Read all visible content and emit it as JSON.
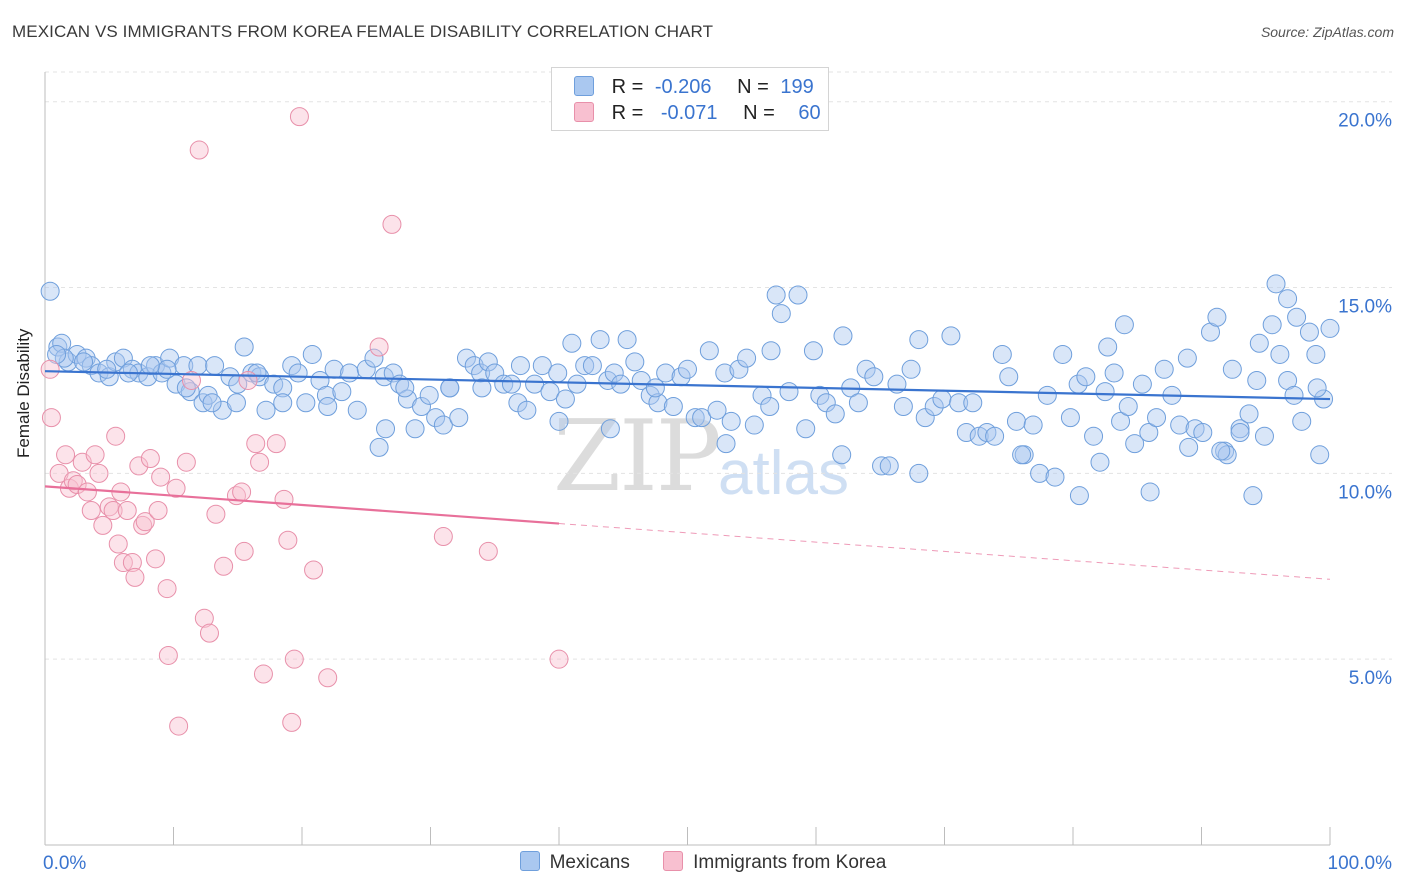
{
  "title": "MEXICAN VS IMMIGRANTS FROM KOREA FEMALE DISABILITY CORRELATION CHART",
  "source": "Source: ZipAtlas.com",
  "watermark": {
    "zip": "ZIP",
    "atlas": "atlas"
  },
  "legend": {
    "r_label": "R =",
    "n_label": "N =",
    "rows": [
      {
        "r": "-0.206",
        "n": "199",
        "color": "#aac8f0",
        "border": "#6f9fdc"
      },
      {
        "r": "-0.071",
        "n": "60",
        "color": "#f8c0d0",
        "border": "#e890aa"
      }
    ]
  },
  "bottom_legend": [
    {
      "name": "Mexicans",
      "color": "#aac8f0",
      "border": "#6f9fdc"
    },
    {
      "name": "Immigrants from Korea",
      "color": "#f8c0d0",
      "border": "#e890aa"
    }
  ],
  "colors": {
    "blue": "#3a74cf",
    "pink": "#e8709a",
    "grid": "#e3e3e3",
    "tick_label": "#3a74cf"
  },
  "chart_data": {
    "type": "scatter",
    "title": "MEXICAN VS IMMIGRANTS FROM KOREA FEMALE DISABILITY CORRELATION CHART",
    "xlabel": "",
    "ylabel": "Female Disability",
    "xlim": [
      0,
      100
    ],
    "ylim": [
      0,
      20.8
    ],
    "x_tick_labels": [
      "0.0%",
      "100.0%"
    ],
    "y_ticks": [
      5,
      10,
      15,
      20
    ],
    "y_tick_labels": [
      "5.0%",
      "10.0%",
      "15.0%",
      "20.0%"
    ],
    "grid": true,
    "legend_position": "top-center",
    "series": [
      {
        "name": "Mexicans",
        "color": "#aac8f0",
        "trend": {
          "x": [
            0,
            100
          ],
          "y": [
            12.75,
            12.0
          ],
          "dashed_from": null
        },
        "points": [
          [
            0.4,
            14.9
          ],
          [
            1.0,
            13.4
          ],
          [
            1.3,
            13.5
          ],
          [
            1.8,
            13.0
          ],
          [
            2.5,
            13.2
          ],
          [
            3.2,
            13.1
          ],
          [
            3.6,
            12.9
          ],
          [
            4.2,
            12.7
          ],
          [
            5.0,
            12.6
          ],
          [
            5.5,
            13.0
          ],
          [
            6.1,
            13.1
          ],
          [
            6.8,
            12.8
          ],
          [
            7.3,
            12.7
          ],
          [
            8.0,
            12.6
          ],
          [
            8.6,
            12.9
          ],
          [
            9.1,
            12.7
          ],
          [
            9.7,
            13.1
          ],
          [
            10.2,
            12.4
          ],
          [
            10.8,
            12.9
          ],
          [
            11.3,
            12.2
          ],
          [
            11.9,
            12.9
          ],
          [
            12.3,
            11.9
          ],
          [
            12.7,
            12.1
          ],
          [
            13.2,
            12.9
          ],
          [
            13.8,
            11.7
          ],
          [
            14.4,
            12.6
          ],
          [
            14.9,
            11.9
          ],
          [
            15.5,
            13.4
          ],
          [
            16.1,
            12.7
          ],
          [
            16.7,
            12.6
          ],
          [
            17.2,
            11.7
          ],
          [
            17.8,
            12.4
          ],
          [
            18.5,
            12.3
          ],
          [
            19.2,
            12.9
          ],
          [
            19.7,
            12.7
          ],
          [
            20.3,
            11.9
          ],
          [
            20.8,
            13.2
          ],
          [
            21.4,
            12.5
          ],
          [
            21.9,
            12.1
          ],
          [
            22.5,
            12.8
          ],
          [
            23.1,
            12.2
          ],
          [
            23.7,
            12.7
          ],
          [
            24.3,
            11.7
          ],
          [
            25.0,
            12.8
          ],
          [
            25.6,
            13.1
          ],
          [
            26.0,
            10.7
          ],
          [
            26.4,
            12.6
          ],
          [
            27.1,
            12.7
          ],
          [
            27.6,
            12.4
          ],
          [
            28.2,
            12.0
          ],
          [
            28.8,
            11.2
          ],
          [
            29.3,
            11.8
          ],
          [
            29.9,
            12.1
          ],
          [
            30.4,
            11.5
          ],
          [
            31.0,
            11.3
          ],
          [
            31.5,
            12.3
          ],
          [
            32.2,
            11.5
          ],
          [
            32.8,
            13.1
          ],
          [
            33.4,
            12.9
          ],
          [
            33.9,
            12.7
          ],
          [
            34.5,
            13.0
          ],
          [
            35.0,
            12.7
          ],
          [
            35.7,
            12.4
          ],
          [
            36.3,
            12.4
          ],
          [
            36.8,
            11.9
          ],
          [
            37.5,
            11.7
          ],
          [
            38.1,
            12.4
          ],
          [
            38.7,
            12.9
          ],
          [
            39.3,
            12.2
          ],
          [
            39.9,
            12.7
          ],
          [
            40.5,
            12.0
          ],
          [
            41.0,
            13.5
          ],
          [
            41.4,
            12.4
          ],
          [
            42.0,
            12.9
          ],
          [
            42.6,
            12.9
          ],
          [
            43.2,
            13.6
          ],
          [
            43.8,
            12.5
          ],
          [
            44.3,
            12.7
          ],
          [
            44.8,
            12.4
          ],
          [
            45.3,
            13.6
          ],
          [
            45.9,
            13.0
          ],
          [
            46.4,
            12.5
          ],
          [
            47.1,
            12.1
          ],
          [
            47.7,
            11.9
          ],
          [
            48.3,
            12.7
          ],
          [
            48.9,
            11.8
          ],
          [
            49.5,
            12.6
          ],
          [
            50.0,
            12.8
          ],
          [
            50.6,
            11.5
          ],
          [
            51.1,
            11.5
          ],
          [
            51.7,
            13.3
          ],
          [
            52.3,
            11.7
          ],
          [
            52.9,
            12.7
          ],
          [
            53.4,
            11.4
          ],
          [
            54.0,
            12.8
          ],
          [
            54.6,
            13.1
          ],
          [
            55.2,
            11.3
          ],
          [
            55.8,
            12.1
          ],
          [
            56.4,
            11.8
          ],
          [
            56.9,
            14.8
          ],
          [
            57.3,
            14.3
          ],
          [
            57.9,
            12.2
          ],
          [
            58.6,
            14.8
          ],
          [
            59.2,
            11.2
          ],
          [
            59.8,
            13.3
          ],
          [
            60.3,
            12.1
          ],
          [
            60.8,
            11.9
          ],
          [
            61.5,
            11.6
          ],
          [
            62.1,
            13.7
          ],
          [
            62.7,
            12.3
          ],
          [
            63.3,
            11.9
          ],
          [
            63.9,
            12.8
          ],
          [
            64.5,
            12.6
          ],
          [
            65.1,
            10.2
          ],
          [
            65.7,
            10.2
          ],
          [
            66.3,
            12.4
          ],
          [
            66.8,
            11.8
          ],
          [
            67.4,
            12.8
          ],
          [
            68.0,
            13.6
          ],
          [
            68.5,
            11.5
          ],
          [
            69.2,
            11.8
          ],
          [
            69.8,
            12.0
          ],
          [
            70.5,
            13.7
          ],
          [
            71.1,
            11.9
          ],
          [
            71.7,
            11.1
          ],
          [
            72.2,
            11.9
          ],
          [
            72.7,
            11.0
          ],
          [
            73.3,
            11.1
          ],
          [
            73.9,
            11.0
          ],
          [
            74.5,
            13.2
          ],
          [
            75.0,
            12.6
          ],
          [
            75.6,
            11.4
          ],
          [
            76.2,
            10.5
          ],
          [
            76.9,
            11.3
          ],
          [
            77.4,
            10.0
          ],
          [
            78.0,
            12.1
          ],
          [
            78.6,
            9.9
          ],
          [
            79.2,
            13.2
          ],
          [
            79.8,
            11.5
          ],
          [
            80.4,
            12.4
          ],
          [
            81.0,
            12.6
          ],
          [
            81.6,
            11.0
          ],
          [
            82.1,
            10.3
          ],
          [
            82.7,
            13.4
          ],
          [
            83.2,
            12.7
          ],
          [
            83.7,
            11.4
          ],
          [
            84.3,
            11.8
          ],
          [
            84.8,
            10.8
          ],
          [
            85.4,
            12.4
          ],
          [
            85.9,
            11.1
          ],
          [
            86.5,
            11.5
          ],
          [
            87.1,
            12.8
          ],
          [
            87.7,
            12.1
          ],
          [
            88.3,
            11.3
          ],
          [
            88.9,
            13.1
          ],
          [
            89.5,
            11.2
          ],
          [
            90.1,
            11.1
          ],
          [
            90.7,
            13.8
          ],
          [
            91.2,
            14.2
          ],
          [
            91.8,
            10.6
          ],
          [
            92.4,
            12.8
          ],
          [
            93.0,
            11.2
          ],
          [
            93.7,
            11.6
          ],
          [
            94.3,
            12.5
          ],
          [
            94.9,
            11.0
          ],
          [
            95.5,
            14.0
          ],
          [
            96.1,
            13.2
          ],
          [
            96.7,
            12.5
          ],
          [
            97.2,
            12.1
          ],
          [
            97.8,
            11.4
          ],
          [
            98.4,
            13.8
          ],
          [
            98.9,
            13.2
          ],
          [
            99.5,
            12.0
          ],
          [
            100.0,
            13.9
          ],
          [
            92.0,
            10.5
          ],
          [
            86.0,
            9.5
          ],
          [
            80.5,
            9.4
          ],
          [
            76.0,
            10.5
          ],
          [
            68.0,
            10.0
          ],
          [
            62.0,
            10.5
          ],
          [
            56.5,
            13.3
          ],
          [
            53.0,
            10.8
          ],
          [
            47.5,
            12.3
          ],
          [
            44.0,
            11.2
          ],
          [
            40.0,
            11.4
          ],
          [
            37.0,
            12.9
          ],
          [
            34.0,
            12.3
          ],
          [
            31.5,
            12.3
          ],
          [
            28.0,
            12.3
          ],
          [
            26.5,
            11.2
          ],
          [
            22.0,
            11.8
          ],
          [
            18.5,
            11.9
          ],
          [
            16.5,
            12.7
          ],
          [
            15.0,
            12.4
          ],
          [
            13.0,
            11.9
          ],
          [
            11.0,
            12.3
          ],
          [
            9.5,
            12.8
          ],
          [
            8.2,
            12.9
          ],
          [
            6.5,
            12.7
          ],
          [
            4.8,
            12.8
          ],
          [
            3.0,
            13.0
          ],
          [
            1.5,
            13.1
          ],
          [
            0.9,
            13.2
          ],
          [
            94.5,
            13.5
          ],
          [
            95.8,
            15.1
          ],
          [
            96.7,
            14.7
          ],
          [
            97.4,
            14.2
          ],
          [
            99.2,
            10.5
          ],
          [
            99.0,
            12.3
          ],
          [
            91.5,
            10.6
          ],
          [
            94.0,
            9.4
          ],
          [
            89.0,
            10.7
          ],
          [
            93.0,
            11.1
          ],
          [
            84.0,
            14.0
          ],
          [
            82.5,
            12.2
          ]
        ]
      },
      {
        "name": "Immigrants from Korea",
        "color": "#f8c0d0",
        "trend": {
          "x": [
            0,
            100
          ],
          "y": [
            9.65,
            7.15
          ],
          "dashed_from": 40
        },
        "points": [
          [
            0.4,
            12.8
          ],
          [
            0.5,
            11.5
          ],
          [
            1.1,
            10.0
          ],
          [
            1.6,
            10.5
          ],
          [
            1.9,
            9.6
          ],
          [
            2.2,
            9.8
          ],
          [
            2.5,
            9.7
          ],
          [
            2.9,
            10.3
          ],
          [
            3.3,
            9.5
          ],
          [
            3.6,
            9.0
          ],
          [
            3.9,
            10.5
          ],
          [
            4.2,
            10.0
          ],
          [
            4.5,
            8.6
          ],
          [
            5.0,
            9.1
          ],
          [
            5.3,
            9.0
          ],
          [
            5.5,
            11.0
          ],
          [
            5.7,
            8.1
          ],
          [
            5.9,
            9.5
          ],
          [
            6.1,
            7.6
          ],
          [
            6.4,
            9.0
          ],
          [
            6.8,
            7.6
          ],
          [
            7.0,
            7.2
          ],
          [
            7.3,
            10.2
          ],
          [
            7.6,
            8.6
          ],
          [
            7.8,
            8.7
          ],
          [
            8.2,
            10.4
          ],
          [
            8.6,
            7.7
          ],
          [
            8.8,
            9.0
          ],
          [
            9.0,
            9.9
          ],
          [
            9.6,
            5.1
          ],
          [
            9.5,
            6.9
          ],
          [
            10.2,
            9.6
          ],
          [
            10.4,
            3.2
          ],
          [
            11.0,
            10.3
          ],
          [
            11.4,
            12.5
          ],
          [
            12.0,
            18.7
          ],
          [
            12.4,
            6.1
          ],
          [
            12.8,
            5.7
          ],
          [
            13.3,
            8.9
          ],
          [
            13.9,
            7.5
          ],
          [
            14.9,
            9.4
          ],
          [
            15.3,
            9.5
          ],
          [
            15.5,
            7.9
          ],
          [
            15.8,
            12.5
          ],
          [
            16.4,
            10.8
          ],
          [
            16.7,
            10.3
          ],
          [
            17.0,
            4.6
          ],
          [
            18.0,
            10.8
          ],
          [
            18.6,
            9.3
          ],
          [
            18.9,
            8.2
          ],
          [
            19.2,
            3.3
          ],
          [
            19.4,
            5.0
          ],
          [
            19.8,
            19.6
          ],
          [
            20.9,
            7.4
          ],
          [
            26.0,
            13.4
          ],
          [
            27.0,
            16.7
          ],
          [
            31.0,
            8.3
          ],
          [
            34.5,
            7.9
          ],
          [
            40.0,
            5.0
          ],
          [
            22.0,
            4.5
          ]
        ]
      }
    ]
  }
}
